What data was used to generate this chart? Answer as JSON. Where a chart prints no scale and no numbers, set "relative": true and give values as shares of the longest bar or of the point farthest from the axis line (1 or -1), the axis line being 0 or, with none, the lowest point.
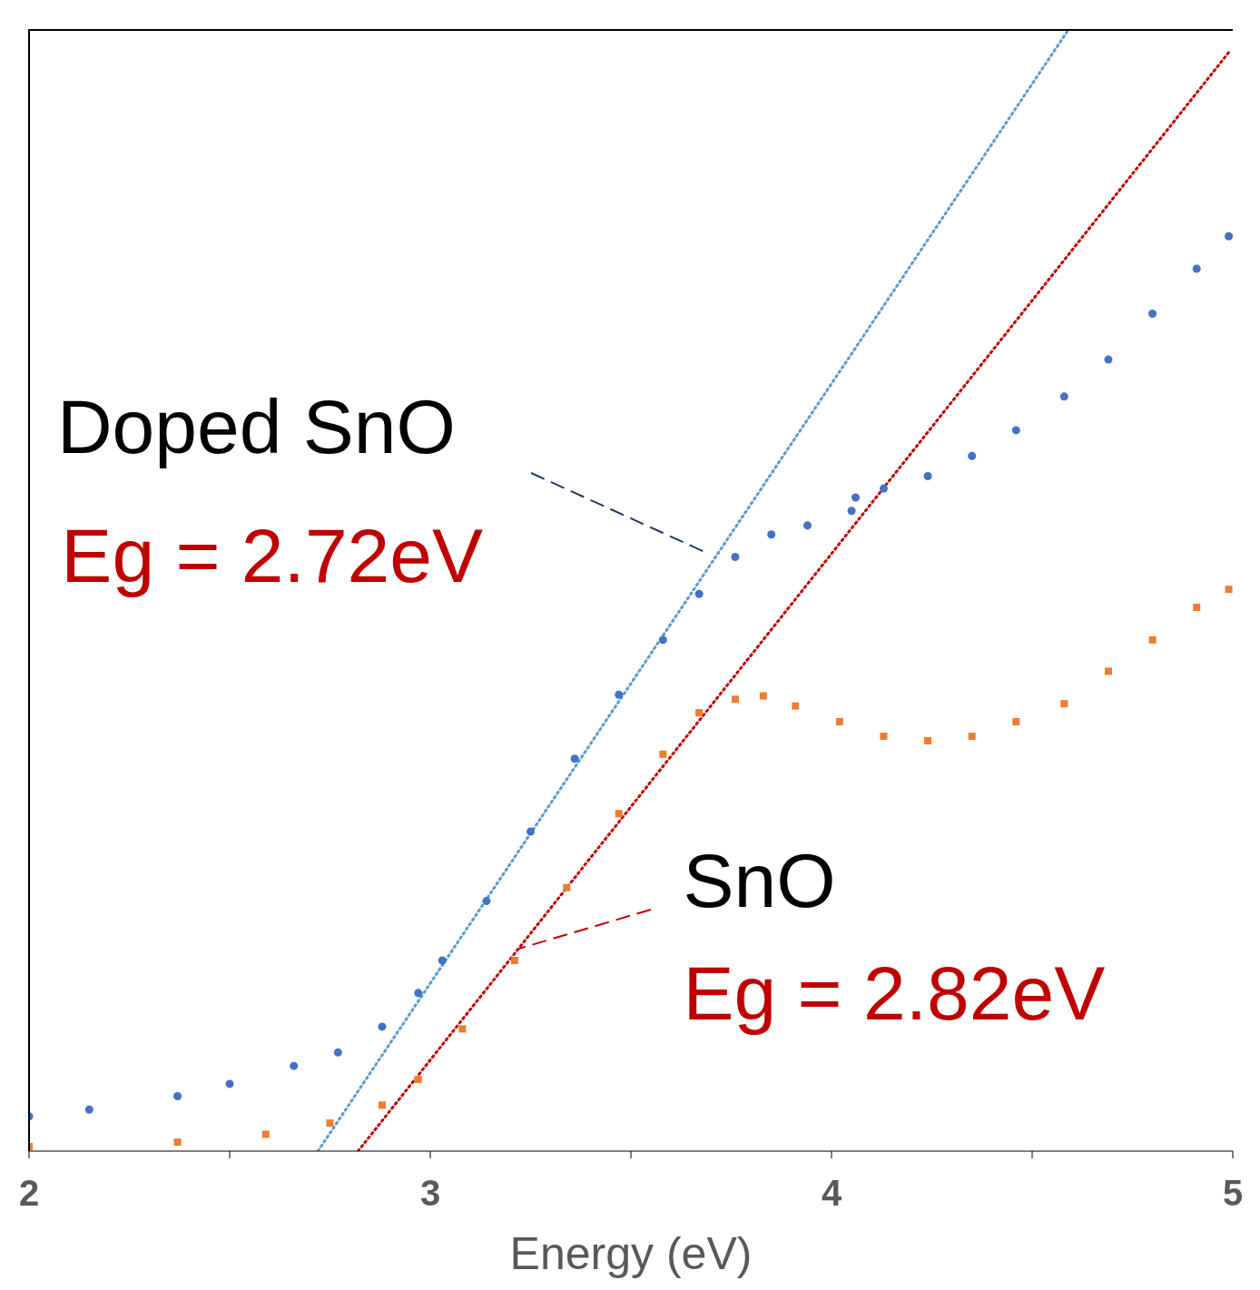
{
  "chart_data": {
    "type": "scatter",
    "xlabel": "Energy (eV)",
    "relative": true,
    "xlim": [
      2,
      5
    ],
    "xticks": [
      2,
      {
        "value": 2.5,
        "label": null
      },
      3,
      {
        "value": 3.5,
        "label": null
      },
      4,
      {
        "value": 4.5,
        "label": null
      },
      5
    ],
    "annotations": [
      "Doped SnO",
      "Eg = 2.72eV",
      "SnO",
      "Eg = 2.82eV"
    ],
    "series": [
      {
        "marker": "circle",
        "color": "#4472c4",
        "x": [
          2.0,
          2.15,
          2.37,
          2.5,
          2.66,
          2.77,
          2.88,
          2.97,
          3.03,
          3.14,
          3.25,
          3.36,
          3.47,
          3.58,
          3.67,
          3.76,
          3.85,
          3.94,
          4.05,
          4.06,
          4.13,
          4.24,
          4.35,
          4.46,
          4.58,
          4.69,
          4.8,
          4.91,
          4.99
        ],
        "values": [
          0.031,
          0.037,
          0.049,
          0.06,
          0.076,
          0.088,
          0.111,
          0.141,
          0.17,
          0.223,
          0.285,
          0.35,
          0.407,
          0.456,
          0.497,
          0.53,
          0.55,
          0.558,
          0.571,
          0.583,
          0.591,
          0.602,
          0.62,
          0.643,
          0.673,
          0.706,
          0.747,
          0.787,
          0.816
        ]
      },
      {
        "marker": "square",
        "color": "#ed7d31",
        "x": [
          2.0,
          2.37,
          2.59,
          2.75,
          2.88,
          2.97,
          3.08,
          3.21,
          3.34,
          3.47,
          3.58,
          3.67,
          3.76,
          3.83,
          3.91,
          4.02,
          4.13,
          4.24,
          4.35,
          4.46,
          4.58,
          4.69,
          4.8,
          4.91,
          4.99
        ],
        "values": [
          0.004,
          0.008,
          0.015,
          0.025,
          0.041,
          0.064,
          0.109,
          0.17,
          0.235,
          0.301,
          0.354,
          0.391,
          0.403,
          0.406,
          0.397,
          0.383,
          0.37,
          0.366,
          0.37,
          0.383,
          0.399,
          0.428,
          0.456,
          0.485,
          0.501
        ]
      },
      {
        "type": "line",
        "marker": "none",
        "line_style": "dotted",
        "color": "#5b9bd5",
        "x": [
          2.72,
          4.59
        ],
        "values": [
          0,
          1
        ]
      },
      {
        "type": "line",
        "marker": "none",
        "line_style": "dotted",
        "color": "#c00000",
        "x": [
          2.82,
          4.99
        ],
        "values": [
          0,
          0.98
        ]
      }
    ]
  }
}
